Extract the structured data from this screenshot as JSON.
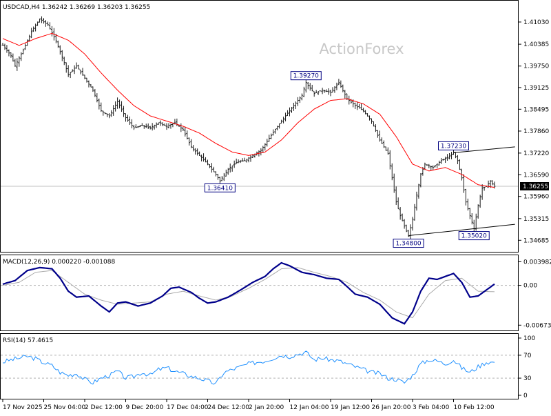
{
  "chart_data": [
    {
      "type": "candlestick",
      "title": "USDCAD,H4  1.36242 1.36269 1.36203 1.36255",
      "instrument": "USDCAD",
      "timeframe": "H4",
      "ohlc_last": {
        "open": 1.36242,
        "high": 1.36269,
        "low": 1.36203,
        "close": 1.36255
      },
      "watermark": "ActionForex",
      "ylim": [
        1.3445,
        1.4155
      ],
      "y_ticks": [
        "1.41030",
        "1.40385",
        "1.39750",
        "1.39125",
        "1.38495",
        "1.37860",
        "1.37220",
        "1.36590",
        "1.35960",
        "1.35315",
        "1.34685"
      ],
      "current_price": "1.36255",
      "moving_average": {
        "color": "#ff0000"
      },
      "close_path": [
        [
          0,
          1.4036
        ],
        [
          2,
          1.4005
        ],
        [
          3,
          1.3975
        ],
        [
          5,
          1.4022
        ],
        [
          7,
          1.4075
        ],
        [
          9,
          1.4112
        ],
        [
          11,
          1.4095
        ],
        [
          13,
          1.4048
        ],
        [
          15,
          1.3985
        ],
        [
          16,
          1.395
        ],
        [
          18,
          1.3975
        ],
        [
          20,
          1.394
        ],
        [
          22,
          1.3905
        ],
        [
          24,
          1.3845
        ],
        [
          26,
          1.383
        ],
        [
          28,
          1.3872
        ],
        [
          30,
          1.3825
        ],
        [
          32,
          1.3795
        ],
        [
          34,
          1.3802
        ],
        [
          36,
          1.3795
        ],
        [
          38,
          1.381
        ],
        [
          40,
          1.38
        ],
        [
          42,
          1.381
        ],
        [
          44,
          1.379
        ],
        [
          46,
          1.374
        ],
        [
          48,
          1.3715
        ],
        [
          50,
          1.369
        ],
        [
          52,
          1.366
        ],
        [
          53,
          1.3641
        ],
        [
          55,
          1.3675
        ],
        [
          57,
          1.3695
        ],
        [
          59,
          1.37
        ],
        [
          61,
          1.3715
        ],
        [
          63,
          1.373
        ],
        [
          65,
          1.3765
        ],
        [
          67,
          1.38
        ],
        [
          69,
          1.383
        ],
        [
          71,
          1.386
        ],
        [
          73,
          1.389
        ],
        [
          74,
          1.3927
        ],
        [
          76,
          1.3895
        ],
        [
          78,
          1.3905
        ],
        [
          80,
          1.3898
        ],
        [
          82,
          1.3927
        ],
        [
          84,
          1.388
        ],
        [
          86,
          1.386
        ],
        [
          88,
          1.3845
        ],
        [
          90,
          1.3815
        ],
        [
          92,
          1.376
        ],
        [
          94,
          1.372
        ],
        [
          95,
          1.365
        ],
        [
          96,
          1.358
        ],
        [
          97,
          1.354
        ],
        [
          98,
          1.351
        ],
        [
          99,
          1.348
        ],
        [
          100,
          1.353
        ],
        [
          101,
          1.36
        ],
        [
          102,
          1.366
        ],
        [
          103,
          1.369
        ],
        [
          105,
          1.368
        ],
        [
          107,
          1.37
        ],
        [
          109,
          1.3713
        ],
        [
          110,
          1.3723
        ],
        [
          111,
          1.37
        ],
        [
          112,
          1.365
        ],
        [
          113,
          1.358
        ],
        [
          114,
          1.354
        ],
        [
          115,
          1.3502
        ],
        [
          116,
          1.357
        ],
        [
          117,
          1.362
        ],
        [
          118,
          1.3625
        ],
        [
          119,
          1.364
        ],
        [
          120,
          1.36255
        ]
      ],
      "ma_path": [
        [
          0,
          1.4055
        ],
        [
          4,
          1.4035
        ],
        [
          8,
          1.4055
        ],
        [
          12,
          1.407
        ],
        [
          16,
          1.405
        ],
        [
          20,
          1.401
        ],
        [
          24,
          1.3955
        ],
        [
          28,
          1.3905
        ],
        [
          32,
          1.386
        ],
        [
          36,
          1.383
        ],
        [
          40,
          1.3815
        ],
        [
          44,
          1.38
        ],
        [
          48,
          1.378
        ],
        [
          52,
          1.375
        ],
        [
          56,
          1.3725
        ],
        [
          60,
          1.3715
        ],
        [
          64,
          1.3725
        ],
        [
          68,
          1.376
        ],
        [
          72,
          1.381
        ],
        [
          76,
          1.385
        ],
        [
          80,
          1.3875
        ],
        [
          84,
          1.388
        ],
        [
          88,
          1.3865
        ],
        [
          92,
          1.3835
        ],
        [
          96,
          1.377
        ],
        [
          100,
          1.369
        ],
        [
          104,
          1.367
        ],
        [
          108,
          1.368
        ],
        [
          112,
          1.366
        ],
        [
          116,
          1.363
        ],
        [
          120,
          1.3622
        ]
      ],
      "annotations": [
        {
          "text": "1.36410",
          "anchor_bar": 53,
          "value": 1.3641,
          "side": "below"
        },
        {
          "text": "1.39270",
          "anchor_bar": 74,
          "value": 1.3927,
          "side": "above"
        },
        {
          "text": "1.37230",
          "anchor_bar": 110,
          "value": 1.3723,
          "side": "above"
        },
        {
          "text": "1.34800",
          "anchor_bar": 99,
          "value": 1.348,
          "side": "below"
        },
        {
          "text": "1.35020",
          "anchor_bar": 115,
          "value": 1.3502,
          "side": "below"
        }
      ],
      "trendlines": [
        {
          "from": [
            110,
            1.3723
          ],
          "to": [
            125,
            1.374
          ]
        },
        {
          "from": [
            99,
            1.3482
          ],
          "to": [
            125,
            1.3515
          ]
        }
      ]
    },
    {
      "type": "line",
      "title": "MACD(12,26,9) 0.000220 -0.001088",
      "ylim": [
        -0.0074,
        0.0045
      ],
      "y_ticks": [
        "0.003982",
        "0.00",
        "-0.006737"
      ],
      "zero_line": 0,
      "series": [
        {
          "name": "MACD",
          "color": "#00008b",
          "values": [
            [
              0,
              0.0002
            ],
            [
              3,
              0.0008
            ],
            [
              6,
              0.0025
            ],
            [
              9,
              0.003
            ],
            [
              12,
              0.0028
            ],
            [
              14,
              0.0012
            ],
            [
              16,
              -0.001
            ],
            [
              18,
              -0.002
            ],
            [
              21,
              -0.0018
            ],
            [
              24,
              -0.0035
            ],
            [
              26,
              -0.0045
            ],
            [
              28,
              -0.003
            ],
            [
              30,
              -0.0028
            ],
            [
              33,
              -0.0035
            ],
            [
              36,
              -0.003
            ],
            [
              39,
              -0.0018
            ],
            [
              41,
              -0.0005
            ],
            [
              43,
              -0.0003
            ],
            [
              46,
              -0.0012
            ],
            [
              48,
              -0.0022
            ],
            [
              50,
              -0.003
            ],
            [
              52,
              -0.0028
            ],
            [
              55,
              -0.002
            ],
            [
              58,
              -0.0008
            ],
            [
              61,
              0.0005
            ],
            [
              64,
              0.0015
            ],
            [
              66,
              0.0028
            ],
            [
              68,
              0.0038
            ],
            [
              70,
              0.0033
            ],
            [
              73,
              0.0022
            ],
            [
              76,
              0.0018
            ],
            [
              79,
              0.0012
            ],
            [
              82,
              0.001
            ],
            [
              84,
              -0.0002
            ],
            [
              86,
              -0.0015
            ],
            [
              89,
              -0.002
            ],
            [
              92,
              -0.0032
            ],
            [
              95,
              -0.0055
            ],
            [
              98,
              -0.0065
            ],
            [
              100,
              -0.0045
            ],
            [
              102,
              -0.001
            ],
            [
              104,
              0.0012
            ],
            [
              106,
              0.001
            ],
            [
              108,
              0.0015
            ],
            [
              110,
              0.002
            ],
            [
              112,
              0.0005
            ],
            [
              114,
              -0.002
            ],
            [
              116,
              -0.0018
            ],
            [
              118,
              -0.0008
            ],
            [
              120,
              0.00022
            ]
          ]
        },
        {
          "name": "Signal",
          "color": "#aaaaaa",
          "values": [
            [
              0,
              0.0
            ],
            [
              4,
              0.0005
            ],
            [
              8,
              0.0022
            ],
            [
              12,
              0.0025
            ],
            [
              16,
              0.0005
            ],
            [
              20,
              -0.0015
            ],
            [
              24,
              -0.0025
            ],
            [
              28,
              -0.0032
            ],
            [
              32,
              -0.003
            ],
            [
              36,
              -0.0028
            ],
            [
              40,
              -0.0015
            ],
            [
              44,
              -0.001
            ],
            [
              48,
              -0.0018
            ],
            [
              52,
              -0.0025
            ],
            [
              56,
              -0.0018
            ],
            [
              60,
              -0.0005
            ],
            [
              64,
              0.001
            ],
            [
              68,
              0.0028
            ],
            [
              72,
              0.003
            ],
            [
              76,
              0.0022
            ],
            [
              80,
              0.0015
            ],
            [
              84,
              0.0005
            ],
            [
              88,
              -0.0012
            ],
            [
              92,
              -0.0025
            ],
            [
              96,
              -0.0045
            ],
            [
              100,
              -0.0055
            ],
            [
              104,
              -0.0015
            ],
            [
              108,
              0.0008
            ],
            [
              112,
              0.0012
            ],
            [
              116,
              -0.001
            ],
            [
              120,
              -0.001088
            ]
          ]
        }
      ]
    },
    {
      "type": "line",
      "title": "RSI(14) 57.4615",
      "ylim": [
        0,
        100
      ],
      "y_ticks": [
        "100",
        "70",
        "30",
        "0"
      ],
      "levels": [
        70,
        30
      ],
      "series": [
        {
          "name": "RSI",
          "color": "#1e90ff",
          "values": [
            [
              0,
              58
            ],
            [
              2,
              62
            ],
            [
              4,
              65
            ],
            [
              6,
              68
            ],
            [
              8,
              64
            ],
            [
              10,
              57
            ],
            [
              12,
              52
            ],
            [
              14,
              40
            ],
            [
              16,
              35
            ],
            [
              18,
              38
            ],
            [
              20,
              28
            ],
            [
              22,
              22
            ],
            [
              24,
              30
            ],
            [
              26,
              35
            ],
            [
              28,
              42
            ],
            [
              30,
              30
            ],
            [
              32,
              33
            ],
            [
              34,
              40
            ],
            [
              36,
              35
            ],
            [
              38,
              45
            ],
            [
              40,
              48
            ],
            [
              42,
              42
            ],
            [
              44,
              38
            ],
            [
              46,
              33
            ],
            [
              48,
              30
            ],
            [
              50,
              25
            ],
            [
              52,
              20
            ],
            [
              54,
              40
            ],
            [
              56,
              45
            ],
            [
              58,
              50
            ],
            [
              60,
              55
            ],
            [
              62,
              58
            ],
            [
              64,
              60
            ],
            [
              66,
              65
            ],
            [
              68,
              70
            ],
            [
              70,
              68
            ],
            [
              72,
              72
            ],
            [
              74,
              75
            ],
            [
              76,
              62
            ],
            [
              78,
              65
            ],
            [
              80,
              62
            ],
            [
              82,
              60
            ],
            [
              84,
              55
            ],
            [
              86,
              50
            ],
            [
              88,
              45
            ],
            [
              90,
              40
            ],
            [
              92,
              38
            ],
            [
              94,
              30
            ],
            [
              96,
              28
            ],
            [
              98,
              22
            ],
            [
              100,
              35
            ],
            [
              102,
              55
            ],
            [
              104,
              62
            ],
            [
              106,
              60
            ],
            [
              108,
              55
            ],
            [
              110,
              62
            ],
            [
              112,
              48
            ],
            [
              114,
              40
            ],
            [
              116,
              50
            ],
            [
              118,
              58
            ],
            [
              120,
              57.4615
            ]
          ]
        }
      ]
    }
  ],
  "x_axis": {
    "labels": [
      "17 Nov 2025",
      "25 Nov 04:00",
      "2 Dec 12:00",
      "9 Dec 20:00",
      "17 Dec 04:00",
      "24 Dec 12:00",
      "2 Jan 20:00",
      "12 Jan 04:00",
      "19 Jan 12:00",
      "26 Jan 20:00",
      "3 Feb 04:00",
      "10 Feb 12:00"
    ],
    "label_bars": [
      0,
      10,
      20,
      30,
      40,
      50,
      60,
      70,
      80,
      90,
      100,
      110
    ]
  }
}
